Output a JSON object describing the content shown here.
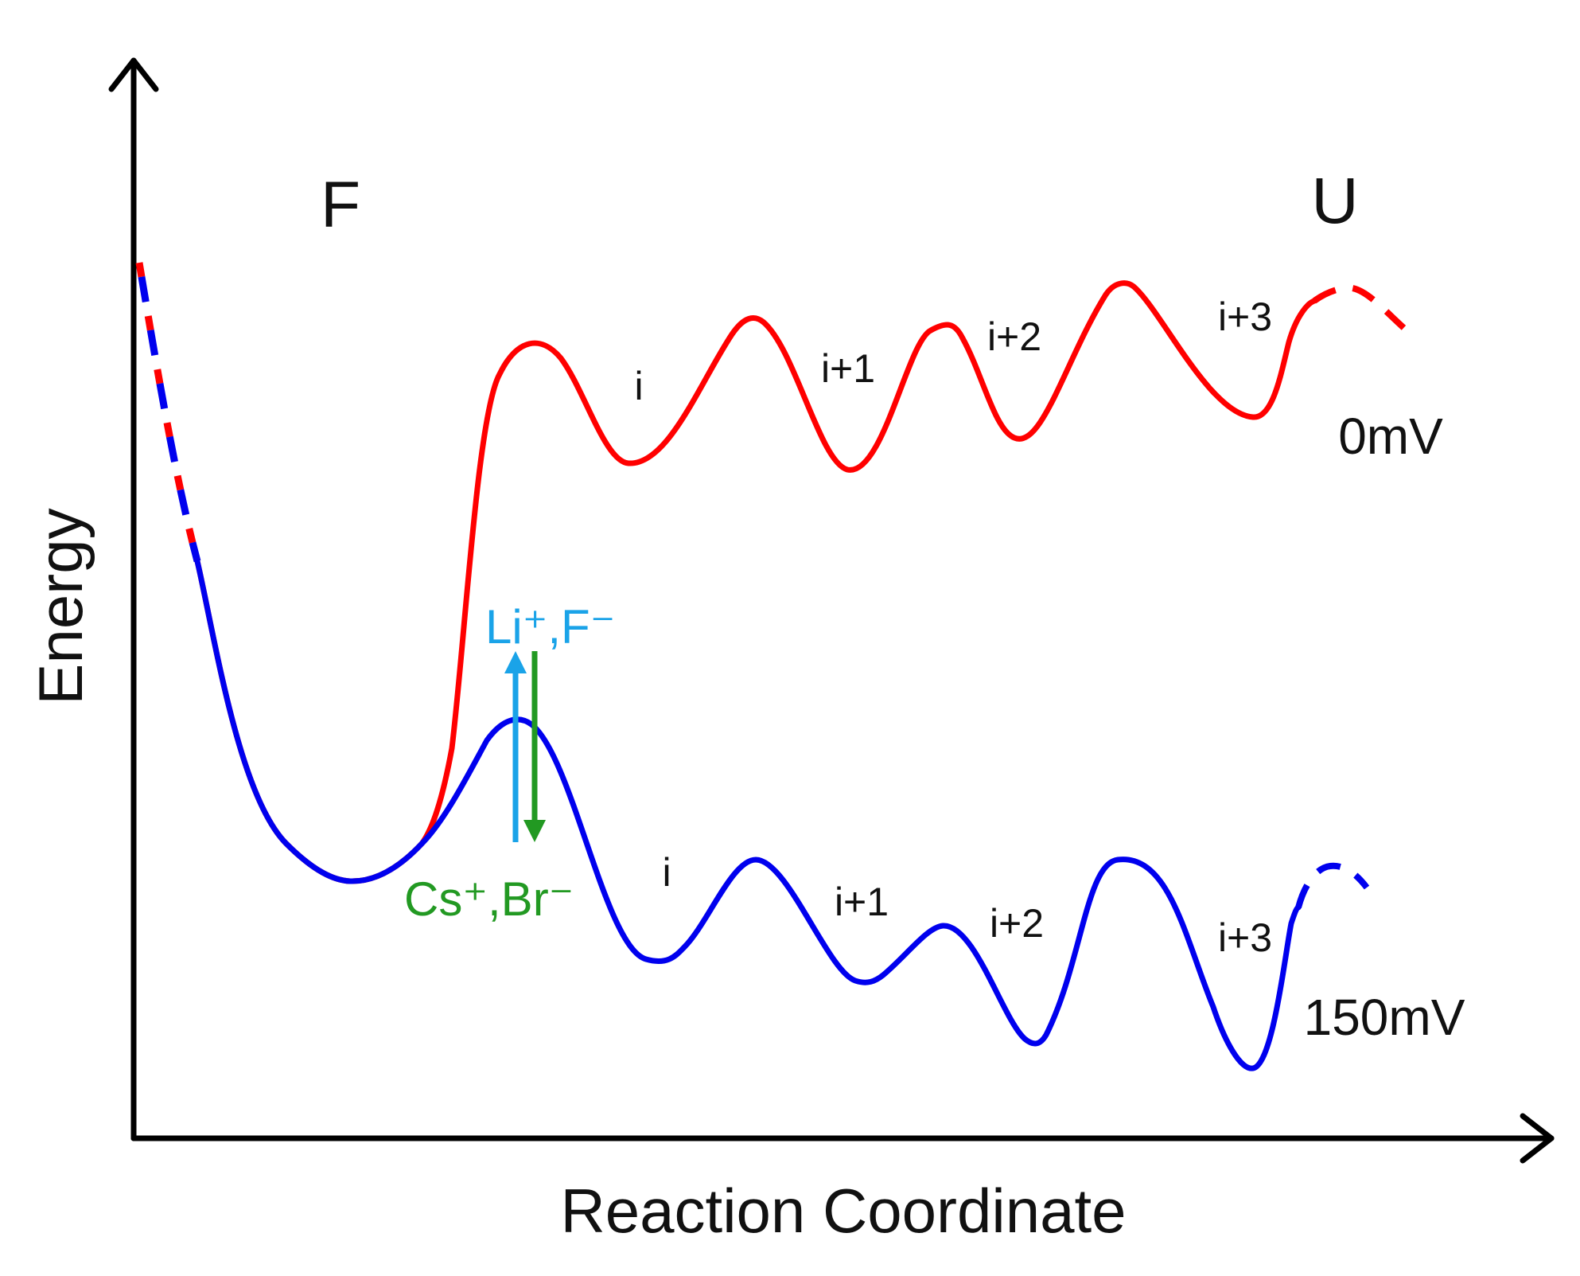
{
  "diagram": {
    "x_axis_label": "Reaction Coordinate",
    "y_axis_label": "Energy",
    "state_folded": "F",
    "state_unfolded": "U",
    "curves": [
      {
        "id": "curve-0mv",
        "label": "0mV",
        "color": "#ff0000"
      },
      {
        "id": "curve-150mv",
        "label": "150mV",
        "color": "#0000ee"
      }
    ],
    "intermediate_labels_top": [
      "i",
      "i+1",
      "i+2",
      "i+3"
    ],
    "intermediate_labels_bottom": [
      "i",
      "i+1",
      "i+2",
      "i+3"
    ],
    "ion_up_label": "Li⁺,F⁻",
    "ion_down_label": "Cs⁺,Br⁻",
    "ion_up_color": "#1aa3e8",
    "ion_down_color": "#229922"
  }
}
